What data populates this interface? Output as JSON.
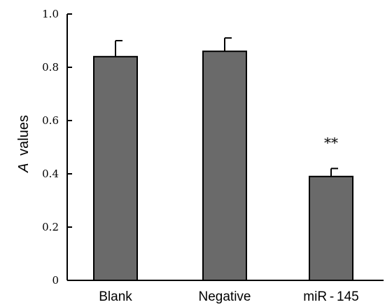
{
  "chart_data": {
    "type": "bar",
    "categories": [
      "Blank",
      "Negative",
      "miR - 145"
    ],
    "values": [
      0.84,
      0.86,
      0.39
    ],
    "errors": [
      0.06,
      0.05,
      0.03
    ],
    "ylabel_italic": "A",
    "ylabel": "values",
    "ylim": [
      0,
      1.0
    ],
    "yticks": [
      "0",
      "0.2",
      "0.4",
      "0.6",
      "0.8",
      "1.0"
    ],
    "annotations": [
      {
        "category_index": 2,
        "text": "**"
      }
    ],
    "grid": false,
    "colors": {
      "bar": "#6a6a6a",
      "outline": "#000000"
    }
  }
}
